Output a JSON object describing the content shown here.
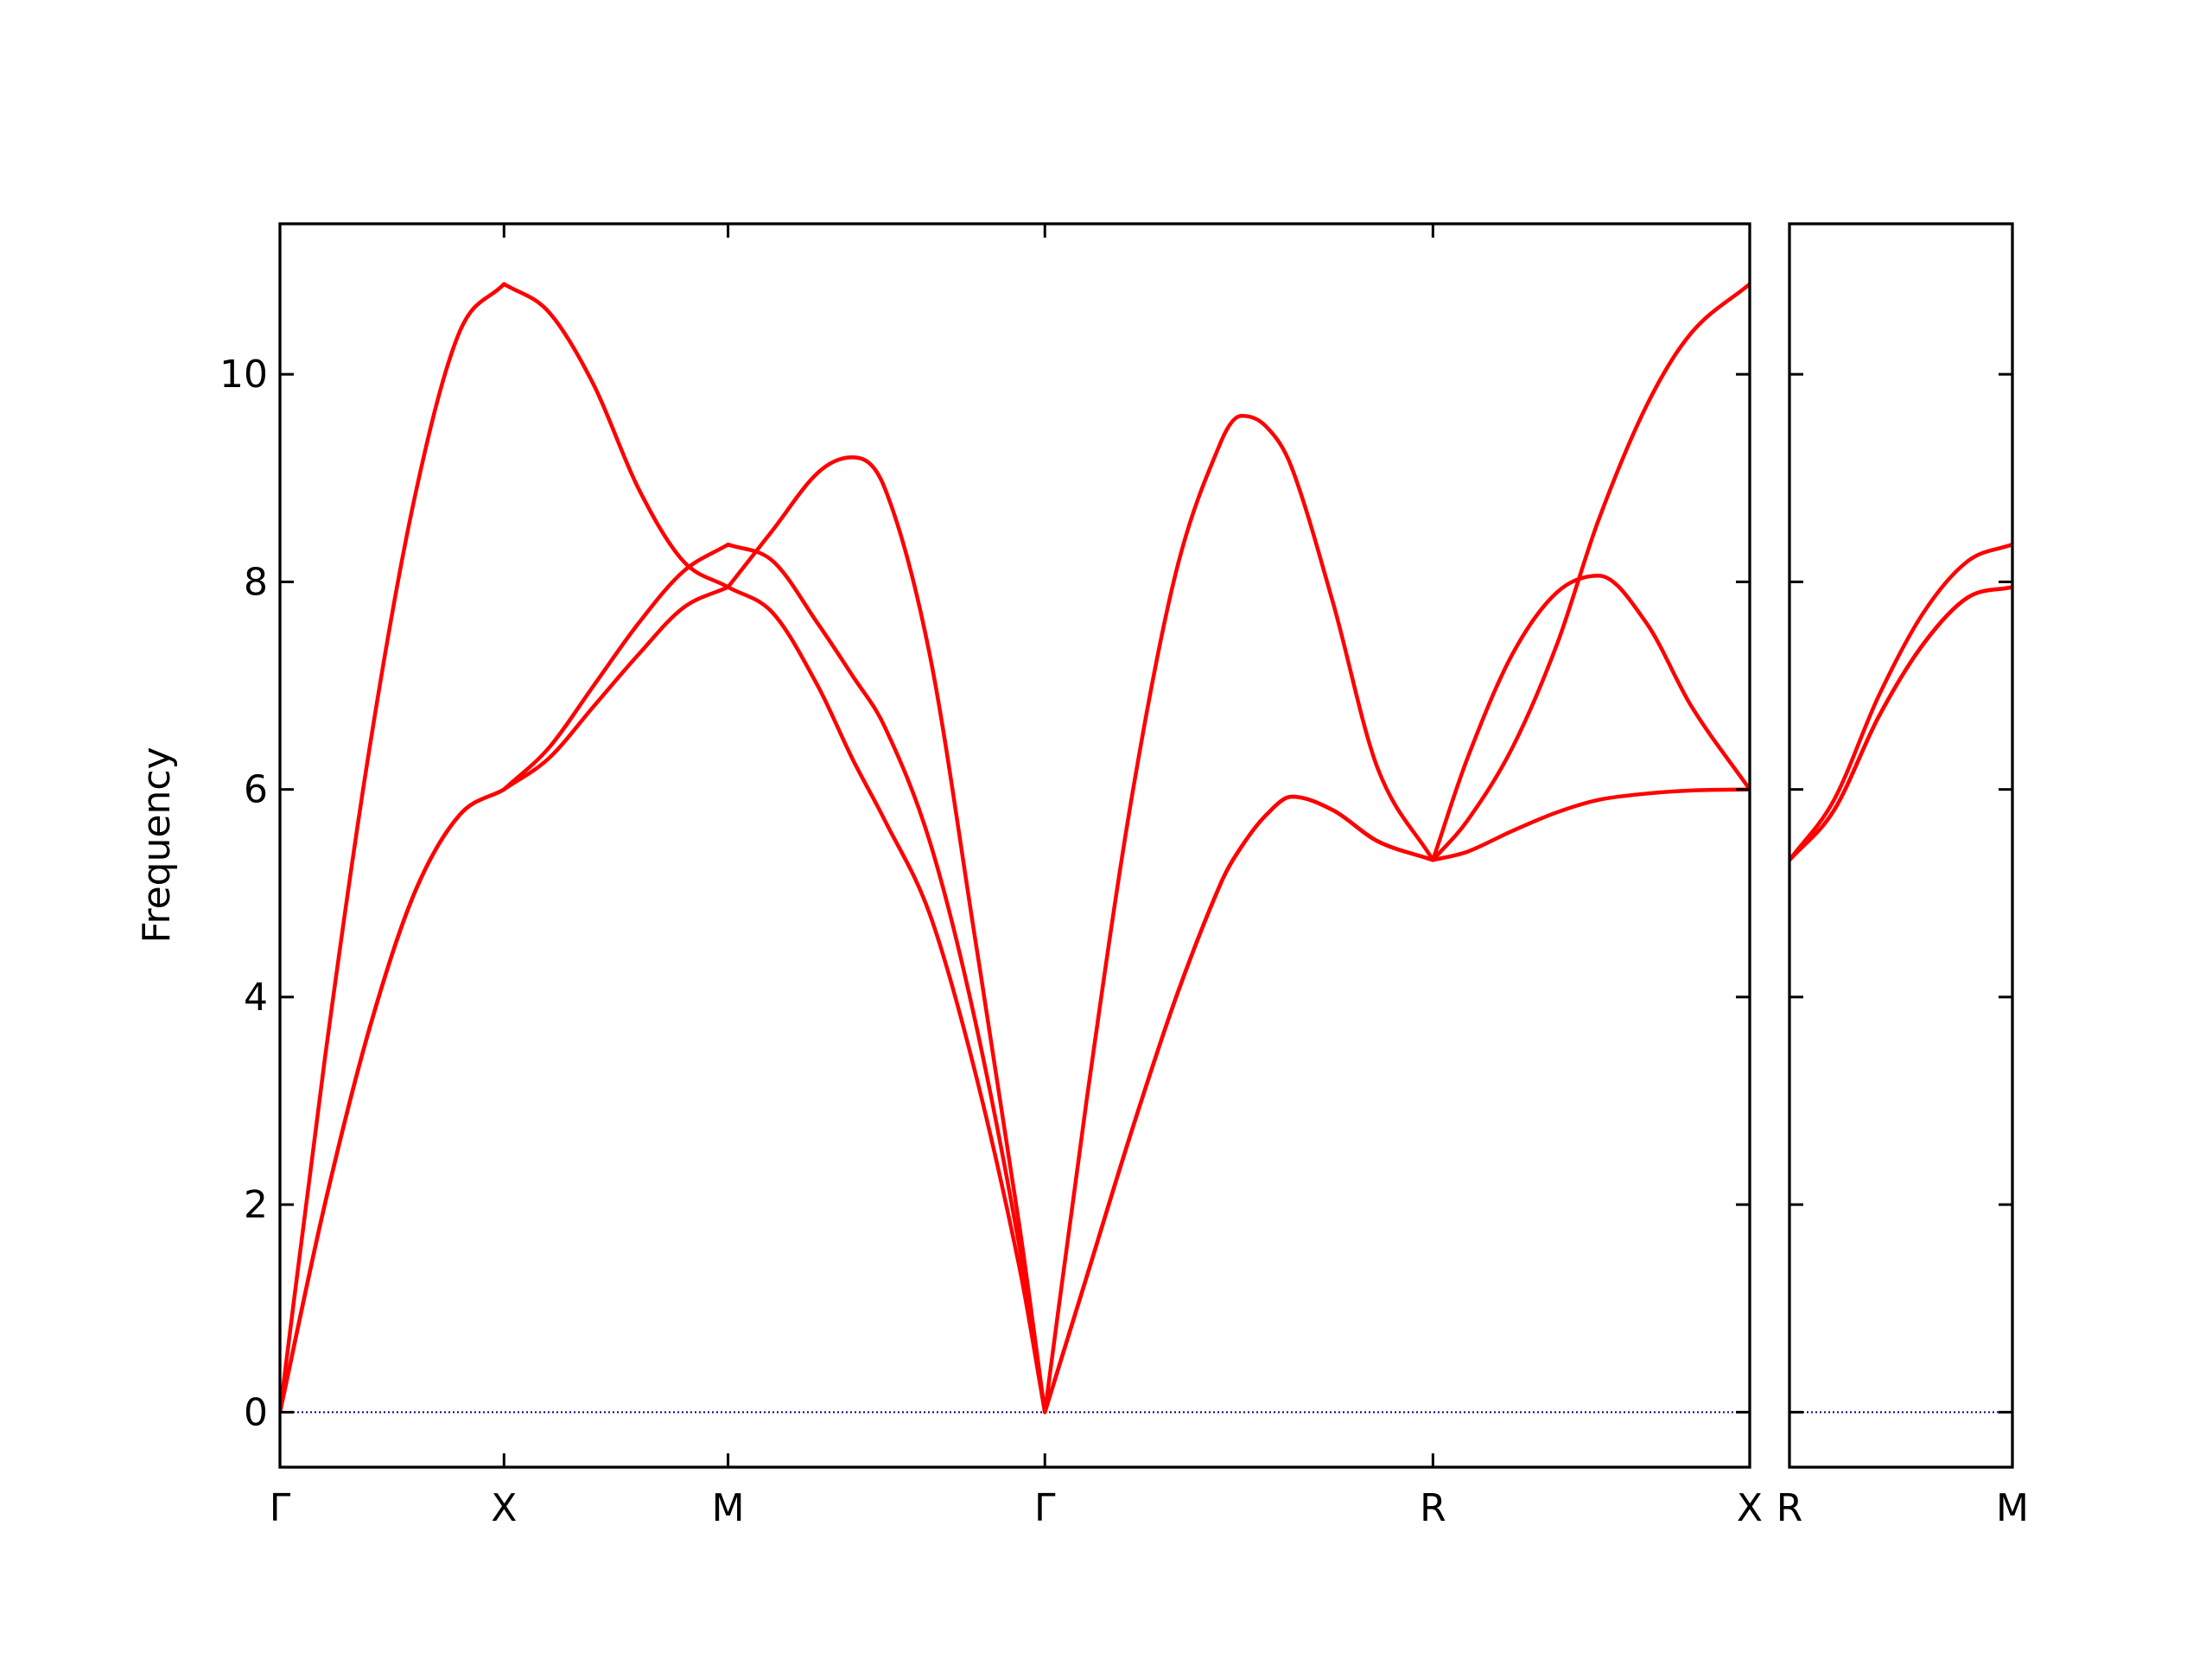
{
  "chart_data": [
    {
      "type": "line",
      "y_label": "Frequency",
      "x": [
        0,
        0.1,
        0.2,
        0.3,
        0.4,
        0.5,
        0.6,
        0.7,
        0.8,
        0.9,
        1.0,
        1.1,
        1.2,
        1.277,
        1.35,
        1.45,
        1.55,
        1.65,
        1.707,
        1.8,
        1.9,
        2.0,
        2.1,
        2.146,
        2.2,
        2.258,
        2.35,
        2.45,
        2.573,
        2.65,
        2.75,
        2.85,
        2.943,
        3.05,
        3.15,
        3.28
      ],
      "series": [
        {
          "color": "#ff0000",
          "values": [
            0,
            3.4,
            6.4,
            8.8,
            10.4,
            10.87,
            10.6,
            9.9,
            8.9,
            8.2,
            7.95,
            8.5,
            9.05,
            9.2,
            8.9,
            7.3,
            4.6,
            1.8,
            0,
            3.0,
            5.9,
            8.1,
            9.35,
            9.6,
            9.5,
            9.1,
            7.8,
            6.2,
            5.32,
            5.7,
            6.4,
            7.4,
            8.6,
            9.7,
            10.4,
            10.87
          ]
        },
        {
          "color": "#ff0000",
          "values": [
            0,
            2.0,
            3.7,
            5.0,
            5.75,
            6.0,
            6.4,
            7.0,
            7.6,
            8.1,
            8.36,
            8.2,
            7.6,
            7.1,
            6.6,
            5.5,
            3.8,
            1.6,
            0,
            1.3,
            2.7,
            4.0,
            5.1,
            5.45,
            5.75,
            5.93,
            5.8,
            5.5,
            5.32,
            6.3,
            7.3,
            7.9,
            8.06,
            7.6,
            6.8,
            6.0
          ]
        },
        {
          "color": "#ff0000",
          "values": [
            0,
            2.0,
            3.7,
            5.0,
            5.75,
            6.0,
            6.3,
            6.8,
            7.3,
            7.75,
            7.95,
            7.7,
            7.0,
            6.3,
            5.7,
            4.8,
            3.3,
            1.4,
            0,
            1.3,
            2.7,
            4.0,
            5.1,
            5.45,
            5.75,
            5.93,
            5.8,
            5.5,
            5.32,
            5.4,
            5.6,
            5.78,
            5.9,
            5.96,
            5.99,
            6.0
          ]
        }
      ],
      "zero_line": {
        "value": 0,
        "color": "#00008b"
      },
      "xlim": [
        0,
        3.28
      ],
      "xticks": [
        {
          "value": 0,
          "label": "Γ"
        },
        {
          "value": 0.5,
          "label": "X"
        },
        {
          "value": 1.0,
          "label": "M"
        },
        {
          "value": 1.707,
          "label": "Γ"
        },
        {
          "value": 2.573,
          "label": "R"
        },
        {
          "value": 3.28,
          "label": "X"
        }
      ],
      "ylim": [
        -0.53,
        11.45
      ],
      "yticks": [
        0,
        2,
        4,
        6,
        8,
        10
      ],
      "show_ytick_labels": true
    },
    {
      "type": "line",
      "x": [
        3.28,
        3.38,
        3.48,
        3.58,
        3.68,
        3.78
      ],
      "series": [
        {
          "color": "#ff0000",
          "values": [
            5.32,
            5.9,
            6.9,
            7.7,
            8.2,
            8.36
          ]
        },
        {
          "color": "#ff0000",
          "values": [
            5.32,
            5.8,
            6.7,
            7.4,
            7.85,
            7.95
          ]
        },
        {
          "color": "#ff0000",
          "values": [
            5.32,
            5.8,
            6.7,
            7.4,
            7.85,
            7.95
          ]
        }
      ],
      "zero_line": {
        "value": 0,
        "color": "#00008b"
      },
      "xlim": [
        3.28,
        3.78
      ],
      "xticks": [
        {
          "value": 3.28,
          "label": "R"
        },
        {
          "value": 3.78,
          "label": "M"
        }
      ],
      "ylim": [
        -0.53,
        11.45
      ],
      "yticks": [
        0,
        2,
        4,
        6,
        8,
        10
      ],
      "show_ytick_labels": false
    }
  ]
}
